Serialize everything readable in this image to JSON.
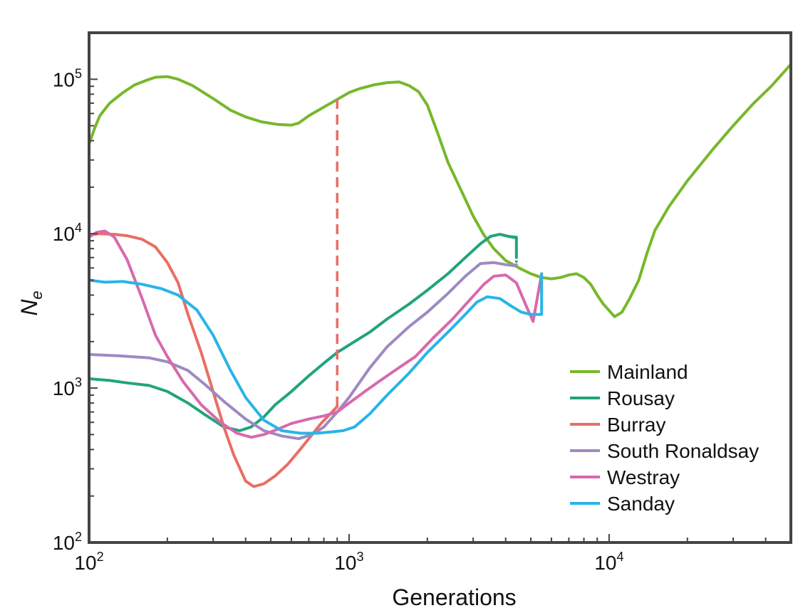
{
  "chart_data": {
    "type": "line",
    "xlabel": "Generations",
    "ylabel": "N",
    "ylabel_subscript": "e",
    "x_scale": "log",
    "y_scale": "log",
    "xlim": [
      100,
      50000
    ],
    "ylim": [
      100,
      200000
    ],
    "grid": false,
    "legend_position": "bottom-right",
    "x_ticks": [
      {
        "value": 100,
        "base": "10",
        "exp": "2"
      },
      {
        "value": 1000,
        "base": "10",
        "exp": "3"
      },
      {
        "value": 10000,
        "base": "10",
        "exp": "4"
      }
    ],
    "y_ticks": [
      {
        "value": 100,
        "base": "10",
        "exp": "2"
      },
      {
        "value": 1000,
        "base": "10",
        "exp": "3"
      },
      {
        "value": 10000,
        "base": "10",
        "exp": "4"
      },
      {
        "value": 100000,
        "base": "10",
        "exp": "5"
      }
    ],
    "series": [
      {
        "name": "Mainland",
        "color": "#77b82b",
        "x": [
          100,
          105,
          110,
          120,
          135,
          150,
          165,
          180,
          200,
          220,
          250,
          300,
          350,
          400,
          460,
          530,
          600,
          640,
          700,
          800,
          900,
          1000,
          1100,
          1250,
          1400,
          1560,
          1700,
          1850,
          2000,
          2200,
          2400,
          2700,
          3000,
          3300,
          3600,
          4000,
          4500,
          5000,
          5500,
          6000,
          6500,
          7000,
          7500,
          8000,
          8500,
          9000,
          9500,
          10500,
          11200,
          12000,
          13000,
          14000,
          15000,
          17000,
          20000,
          25000,
          30000,
          36000,
          42000,
          50000
        ],
        "y": [
          38000,
          48000,
          58000,
          70000,
          82000,
          92000,
          98000,
          103000,
          104000,
          100000,
          91000,
          75000,
          63000,
          57000,
          53000,
          51000,
          50500,
          52000,
          58000,
          66000,
          74000,
          82000,
          87000,
          92000,
          95000,
          96000,
          91000,
          83000,
          68000,
          44000,
          29000,
          19000,
          13000,
          9800,
          8000,
          6700,
          6000,
          5500,
          5200,
          5100,
          5200,
          5400,
          5500,
          5200,
          4700,
          4000,
          3500,
          2900,
          3100,
          3800,
          5000,
          7500,
          10500,
          15000,
          22000,
          35000,
          50000,
          70000,
          90000,
          125000
        ]
      },
      {
        "name": "Rousay",
        "color": "#21a47e",
        "x": [
          100,
          120,
          140,
          170,
          200,
          240,
          280,
          330,
          380,
          420,
          470,
          520,
          600,
          700,
          800,
          900,
          1000,
          1200,
          1400,
          1700,
          2000,
          2400,
          2800,
          3200,
          3500,
          3800,
          4100,
          4400,
          4400
        ],
        "y": [
          1150,
          1120,
          1080,
          1040,
          950,
          800,
          670,
          560,
          530,
          560,
          650,
          780,
          950,
          1200,
          1450,
          1700,
          1900,
          2300,
          2800,
          3500,
          4300,
          5500,
          7000,
          8600,
          9600,
          9900,
          9600,
          9400,
          7000
        ]
      },
      {
        "name": "Burray",
        "color": "#e96e64",
        "x": [
          100,
          110,
          125,
          140,
          160,
          180,
          200,
          220,
          240,
          270,
          300,
          330,
          360,
          400,
          430,
          470,
          520,
          580,
          640,
          700,
          780,
          860,
          900
        ],
        "y": [
          9800,
          10000,
          9900,
          9700,
          9200,
          8200,
          6500,
          4800,
          3000,
          1700,
          950,
          560,
          370,
          250,
          230,
          240,
          270,
          320,
          390,
          470,
          590,
          700,
          760
        ]
      },
      {
        "name": "South Ronaldsay",
        "color": "#9d8ac2",
        "x": [
          100,
          130,
          170,
          200,
          240,
          280,
          330,
          400,
          470,
          550,
          640,
          720,
          800,
          900,
          1000,
          1200,
          1400,
          1700,
          2000,
          2400,
          2800,
          3200,
          3600,
          4000,
          4300,
          4400
        ],
        "y": [
          1650,
          1620,
          1570,
          1480,
          1300,
          1050,
          820,
          630,
          530,
          490,
          470,
          500,
          560,
          700,
          870,
          1350,
          1850,
          2500,
          3100,
          4100,
          5300,
          6400,
          6500,
          6300,
          6200,
          6300
        ]
      },
      {
        "name": "Westray",
        "color": "#d869ad",
        "x": [
          100,
          107,
          115,
          125,
          140,
          160,
          180,
          200,
          230,
          270,
          320,
          370,
          420,
          470,
          530,
          600,
          700,
          800,
          900,
          1000,
          1150,
          1300,
          1500,
          1800,
          2100,
          2500,
          2900,
          3300,
          3600,
          4000,
          4400,
          4800,
          5100,
          5500
        ],
        "y": [
          9500,
          10200,
          10400,
          9500,
          6800,
          3800,
          2200,
          1600,
          1100,
          780,
          600,
          510,
          480,
          500,
          540,
          590,
          630,
          660,
          700,
          800,
          950,
          1100,
          1300,
          1600,
          2100,
          2800,
          3700,
          4700,
          5300,
          5400,
          4800,
          3400,
          2700,
          5500
        ]
      },
      {
        "name": "Sanday",
        "color": "#29b5e6",
        "x": [
          100,
          115,
          135,
          160,
          190,
          220,
          260,
          300,
          350,
          400,
          470,
          550,
          650,
          750,
          850,
          950,
          1050,
          1200,
          1400,
          1700,
          2000,
          2400,
          2800,
          3100,
          3400,
          3800,
          4200,
          4600,
          5000,
          5500,
          5500
        ],
        "y": [
          5000,
          4850,
          4900,
          4700,
          4400,
          4000,
          3200,
          2200,
          1300,
          870,
          620,
          530,
          510,
          510,
          520,
          530,
          560,
          680,
          900,
          1250,
          1700,
          2300,
          3000,
          3600,
          3900,
          3800,
          3400,
          3100,
          3000,
          3000,
          5500
        ]
      }
    ],
    "annotations": [
      {
        "type": "dashed-vertical",
        "series": "Burray",
        "x": 900,
        "y_from": 760,
        "y_to": 74000,
        "color": "#e96e64"
      },
      {
        "type": "dashed-segment",
        "series": "Rousay",
        "x": [
          4100,
          4400,
          4400
        ],
        "y": [
          9600,
          9500,
          6500
        ],
        "color": "#21a47e"
      },
      {
        "type": "dashed-segment",
        "series": "Sanday",
        "x": [
          5500,
          5500
        ],
        "y": [
          3000,
          5500
        ],
        "color": "#29b5e6"
      }
    ]
  }
}
